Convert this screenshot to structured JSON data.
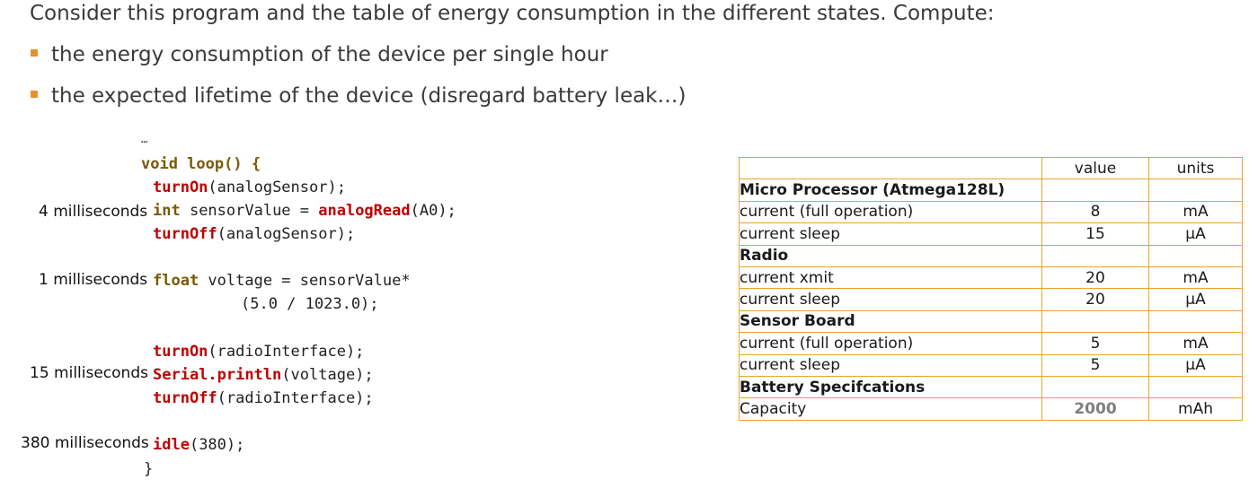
{
  "heading": "Consider this program and the table of energy consumption in the different states. Compute:",
  "bullets": [
    "the energy consumption of the device per single hour",
    "the expected lifetime of the device  (disregard battery leak…)"
  ],
  "code": {
    "ellipsis": "…",
    "loop_open": "void loop() {",
    "turn_on_sensor": {
      "fn": "turnOn",
      "args": "(analogSensor);"
    },
    "read_line": {
      "kw": "int",
      "var": " sensorValue = ",
      "fn": "analogRead",
      "args": "(A0);"
    },
    "turn_off_sensor": {
      "fn": "turnOff",
      "args": "(analogSensor);"
    },
    "float_line": {
      "kw": "float",
      "rest": " voltage = sensorValue*"
    },
    "float_cont": "(5.0 / 1023.0);",
    "turn_on_radio": {
      "fn": "turnOn",
      "args": "(radioInterface);"
    },
    "serial_line": {
      "fn": "Serial.println",
      "args": "(voltage);"
    },
    "turn_off_radio": {
      "fn": "turnOff",
      "args": "(radioInterface);"
    },
    "idle_line": {
      "fn": "idle",
      "args": "(380);"
    },
    "loop_close": "}"
  },
  "durations": [
    "4 milliseconds",
    "1 milliseconds",
    "15 milliseconds",
    "380 milliseconds"
  ],
  "table": {
    "header": {
      "label": "",
      "value": "value",
      "units": "units"
    },
    "rows": [
      {
        "type": "section",
        "label": "Micro Processor (Atmega128L)",
        "value": "",
        "units": ""
      },
      {
        "type": "item",
        "label": "current (full operation)",
        "value": "8",
        "units": "mA"
      },
      {
        "type": "item",
        "label": "current sleep",
        "value": "15",
        "units": "µA"
      },
      {
        "type": "section",
        "label": "Radio",
        "value": "",
        "units": ""
      },
      {
        "type": "item",
        "label": "current xmit",
        "value": "20",
        "units": "mA"
      },
      {
        "type": "item",
        "label": "current sleep",
        "value": "20",
        "units": "µA"
      },
      {
        "type": "section",
        "label": "Sensor Board",
        "value": "",
        "units": ""
      },
      {
        "type": "item",
        "label": "current (full operation)",
        "value": "5",
        "units": "mA"
      },
      {
        "type": "item",
        "label": "current sleep",
        "value": "5",
        "units": "µA"
      },
      {
        "type": "section",
        "label": "Battery Specifcations",
        "value": "",
        "units": ""
      },
      {
        "type": "capacity",
        "label": "Capacity",
        "value": "2000",
        "units": "mAh"
      }
    ]
  }
}
